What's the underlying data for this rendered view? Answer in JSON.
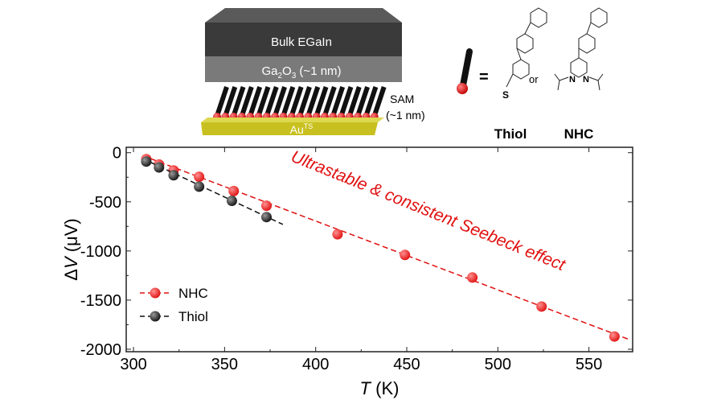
{
  "diagram": {
    "top_layer": "Bulk EGaIn",
    "oxide_layer": "Ga2O3 (~1 nm)",
    "oxide_main": "Ga",
    "oxide_sub1": "2",
    "oxide_mid": "O",
    "oxide_sub2": "3",
    "oxide_rest": " (~1 nm)",
    "sam_label": "SAM",
    "sam_thickness": "(~1 nm)",
    "substrate": "Au",
    "substrate_sup": "TS",
    "equals": "=",
    "or": "or",
    "thiol_label": "Thiol",
    "nhc_label": "NHC",
    "atom_s": "S",
    "atom_n": "N",
    "colors": {
      "top": "#3a3a3a",
      "oxide": "#7a7a7a",
      "gold": "#c8c020",
      "anchor": "#e01010"
    }
  },
  "chart_data": {
    "type": "scatter",
    "xlabel_italic": "T",
    "xlabel_unit": " (K)",
    "ylabel_prefix": "Δ",
    "ylabel_italic": "V",
    "ylabel_unit": " (μV)",
    "xlim": [
      296,
      574
    ],
    "ylim": [
      -2025,
      55
    ],
    "xticks": [
      300,
      350,
      400,
      450,
      500,
      550
    ],
    "yticks": [
      0,
      -500,
      -1000,
      -1500,
      -2000
    ],
    "annotation": "Ultrastable & consistent Seebeck effect",
    "legend_position": "bottom-left",
    "series": [
      {
        "name": "NHC",
        "color": "#e01010",
        "x": [
          307,
          314,
          322,
          336,
          355,
          373,
          412,
          449,
          486,
          524,
          564
        ],
        "y": [
          -66,
          -120,
          -180,
          -245,
          -390,
          -540,
          -830,
          -1040,
          -1270,
          -1565,
          -1870
        ],
        "fit": {
          "x": [
            305,
            572
          ],
          "y": [
            -30,
            -1900
          ]
        }
      },
      {
        "name": "Thiol",
        "color": "#111111",
        "x": [
          307,
          314,
          322,
          336,
          354,
          373
        ],
        "y": [
          -90,
          -150,
          -230,
          -345,
          -490,
          -655
        ],
        "fit": {
          "x": [
            305,
            382
          ],
          "y": [
            -60,
            -730
          ]
        }
      }
    ]
  }
}
